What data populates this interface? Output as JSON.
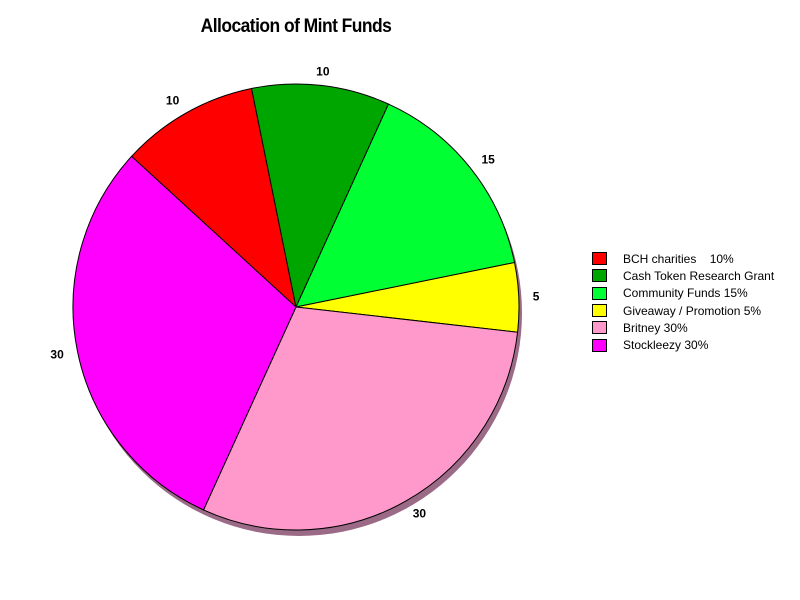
{
  "chart_data": {
    "type": "pie",
    "title": "Allocation of Mint Funds",
    "slices": [
      {
        "label": "BCH charities    10%",
        "value": 10,
        "value_label": "10",
        "color": "#ff0000"
      },
      {
        "label": "Cash Token Research Grant",
        "value": 10,
        "value_label": "10",
        "color": "#00a600"
      },
      {
        "label": "Community Funds 15%",
        "value": 15,
        "value_label": "15",
        "color": "#00ff33"
      },
      {
        "label": "Giveaway / Promotion 5%",
        "value": 5,
        "value_label": "5",
        "color": "#ffff00"
      },
      {
        "label": "Britney 30%",
        "value": 30,
        "value_label": "30",
        "color": "#ff99cc"
      },
      {
        "label": "Stockleezy 30%",
        "value": 30,
        "value_label": "30",
        "color": "#ff00ff"
      }
    ],
    "legend_position": "right",
    "shadow": true
  }
}
